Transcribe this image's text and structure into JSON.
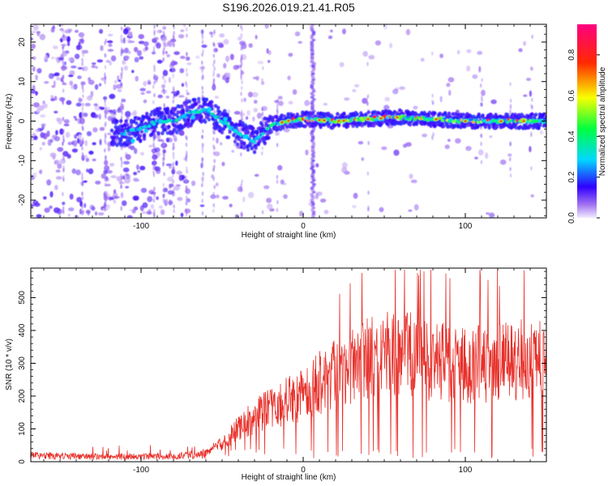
{
  "chart_data": [
    {
      "type": "heatmap",
      "title": "S196.2026.019.21.41.R05",
      "xlabel": "Height of straight line (km)",
      "ylabel": "Frequency (Hz)",
      "xlim": [
        -168,
        150
      ],
      "ylim": [
        -24.5,
        24.5
      ],
      "xticks": [
        -100,
        0,
        100
      ],
      "yticks": [
        -20,
        -10,
        0,
        10,
        20
      ],
      "colorbar": {
        "label": "Normalized spectral amplitude",
        "range": [
          0.0,
          0.95
        ],
        "ticks": [
          0.0,
          0.2,
          0.4,
          0.6,
          0.8
        ]
      },
      "ridge_points": [
        {
          "x": -110,
          "y": -3
        },
        {
          "x": -100,
          "y": -2
        },
        {
          "x": -90,
          "y": 0
        },
        {
          "x": -80,
          "y": 0
        },
        {
          "x": -70,
          "y": 2
        },
        {
          "x": -60,
          "y": 3
        },
        {
          "x": -50,
          "y": 0
        },
        {
          "x": -40,
          "y": -3
        },
        {
          "x": -30,
          "y": -5
        },
        {
          "x": -25,
          "y": -3
        },
        {
          "x": -20,
          "y": -1
        },
        {
          "x": -10,
          "y": 0
        },
        {
          "x": 0,
          "y": 0.5
        },
        {
          "x": 20,
          "y": 0
        },
        {
          "x": 60,
          "y": 1
        },
        {
          "x": 100,
          "y": 0
        },
        {
          "x": 150,
          "y": 0
        }
      ]
    },
    {
      "type": "line",
      "xlabel": "Height of straight line (km)",
      "ylabel": "SNR (10 * v/v)",
      "xlim": [
        -168,
        150
      ],
      "ylim": [
        0,
        590
      ],
      "xticks": [
        -100,
        0,
        100
      ],
      "yticks": [
        0,
        100,
        200,
        300,
        400,
        500
      ],
      "series": [
        {
          "name": "SNR",
          "color": "#e8302a",
          "envelope": {
            "x": [
              -168,
              -120,
              -80,
              -60,
              -50,
              -40,
              -30,
              -20,
              -10,
              0,
              10,
              20,
              30,
              40,
              50,
              60,
              80,
              100,
              120,
              140,
              150
            ],
            "y": [
              25,
              20,
              22,
              30,
              60,
              110,
              150,
              175,
              200,
              220,
              260,
              300,
              320,
              340,
              350,
              360,
              330,
              320,
              330,
              340,
              330
            ]
          }
        }
      ]
    }
  ]
}
